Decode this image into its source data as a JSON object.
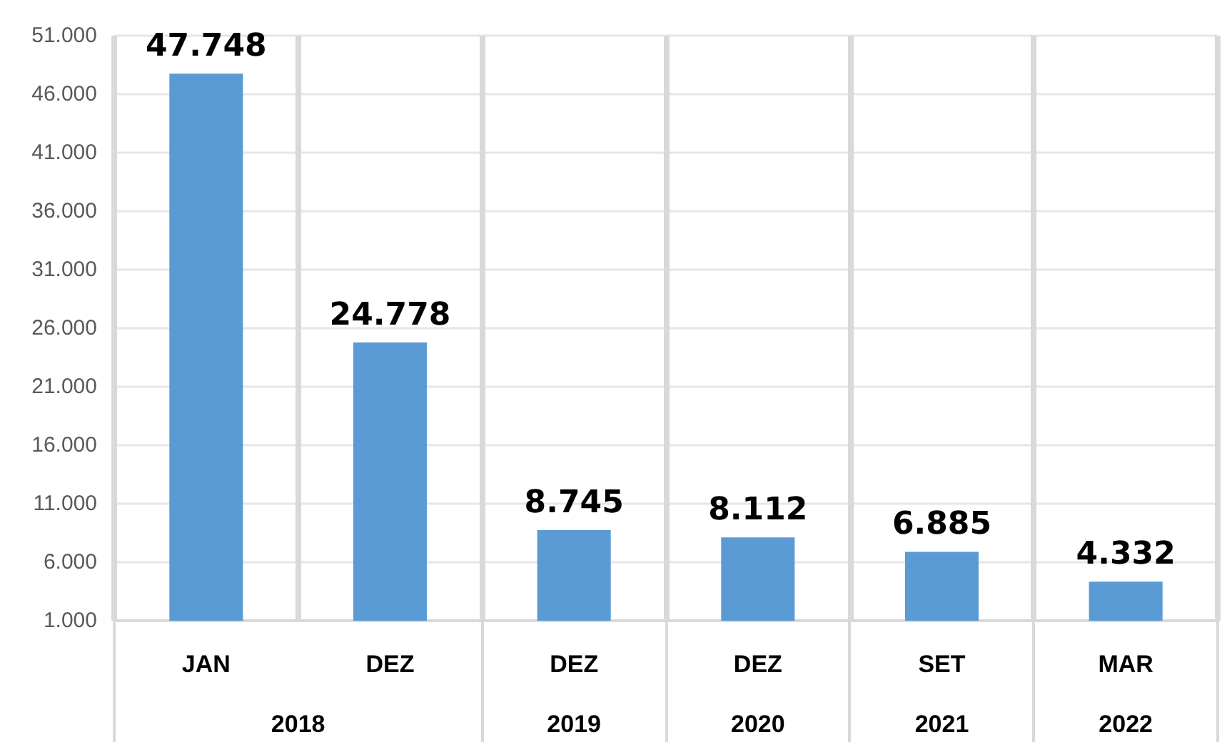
{
  "chart_data": {
    "type": "bar",
    "categories": [
      "JAN",
      "DEZ",
      "DEZ",
      "DEZ",
      "SET",
      "MAR"
    ],
    "values": [
      47748,
      24778,
      8745,
      8112,
      6885,
      4332
    ],
    "value_labels": [
      "47.748",
      "24.778",
      "8.745",
      "8.112",
      "6.885",
      "4.332"
    ],
    "color": "#5b9bd5",
    "ylim": [
      1000,
      51000
    ],
    "yticks": [
      {
        "value": 1000,
        "label": "1.000"
      },
      {
        "value": 6000,
        "label": "6.000"
      },
      {
        "value": 11000,
        "label": "11.000"
      },
      {
        "value": 16000,
        "label": "16.000"
      },
      {
        "value": 21000,
        "label": "21.000"
      },
      {
        "value": 26000,
        "label": "26.000"
      },
      {
        "value": 31000,
        "label": "31.000"
      },
      {
        "value": 36000,
        "label": "36.000"
      },
      {
        "value": 41000,
        "label": "41.000"
      },
      {
        "value": 46000,
        "label": "46.000"
      },
      {
        "value": 51000,
        "label": "51.000"
      }
    ],
    "grid": true,
    "annotations": [
      "2018",
      "2019",
      "2020",
      "2021",
      "2022"
    ]
  }
}
